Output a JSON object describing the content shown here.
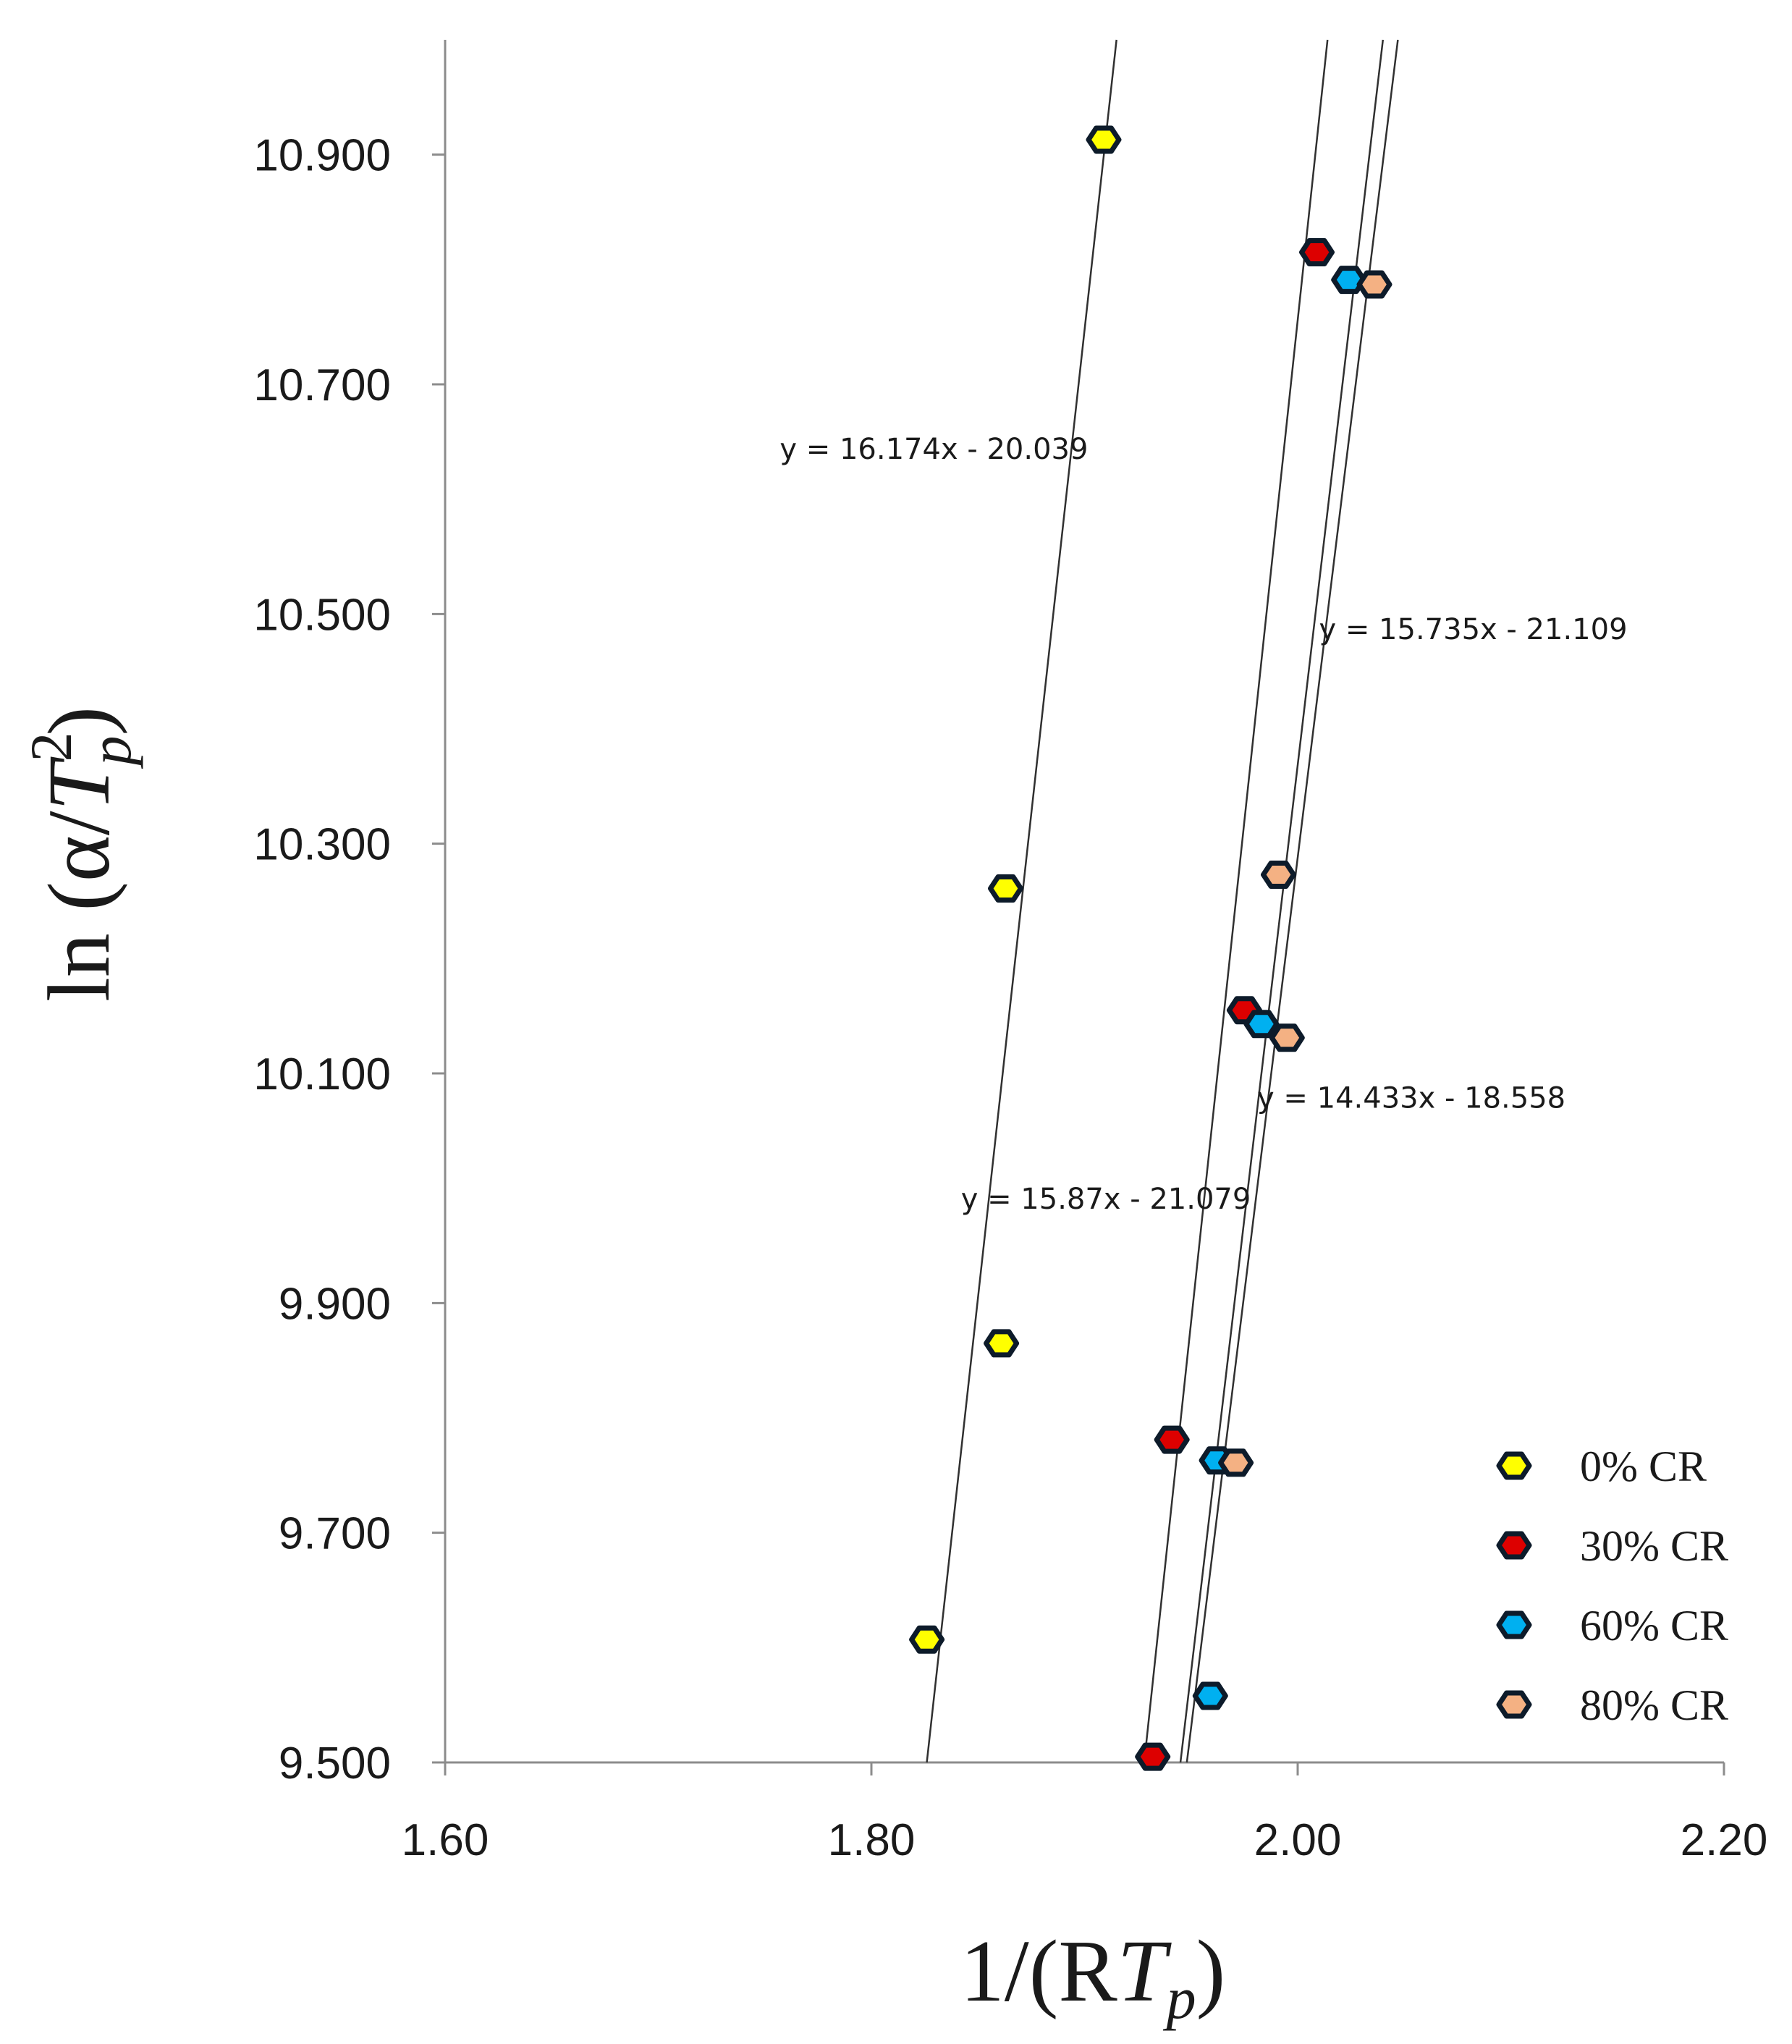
{
  "chart_data": {
    "type": "scatter",
    "title": "",
    "xlabel": "1/(RTp)",
    "xlabel_parts": {
      "prefix": "1/(R",
      "var": "T",
      "sub": "p",
      "suffix": ")"
    },
    "ylabel": "ln (α/Tp²)",
    "ylabel_parts": {
      "prefix": "ln (α/",
      "var": "T",
      "sup": "2",
      "sub": "p",
      "suffix": ")"
    },
    "xlim": [
      1.6,
      2.2
    ],
    "ylim": [
      9.5,
      11.0
    ],
    "x_ticks": [
      1.6,
      1.8,
      2.0,
      2.2
    ],
    "x_tick_labels": [
      "1.60",
      "1.80",
      "2.00",
      "2.20"
    ],
    "y_ticks": [
      9.5,
      9.7,
      9.9,
      10.1,
      10.3,
      10.5,
      10.7,
      10.9
    ],
    "y_tick_labels": [
      "9.500",
      "9.700",
      "9.900",
      "10.100",
      "10.300",
      "10.500",
      "10.700",
      "10.900"
    ],
    "grid": false,
    "legend_position": "bottom-right",
    "series": [
      {
        "name": "0% CR",
        "color": "#ffff00",
        "x": [
          1.826,
          1.861,
          1.863,
          1.909
        ],
        "y": [
          9.607,
          9.865,
          10.261,
          10.913
        ],
        "trendline": {
          "x": [
            1.826,
            1.915
          ],
          "y": [
            9.5,
            11.0
          ]
        }
      },
      {
        "name": "30% CR",
        "color": "#dd0000",
        "x": [
          1.932,
          1.941,
          1.975,
          2.009
        ],
        "y": [
          9.505,
          9.781,
          10.155,
          10.815
        ],
        "trendline": {
          "x": [
            1.928,
            2.014
          ],
          "y": [
            9.5,
            11.0
          ]
        }
      },
      {
        "name": "60% CR",
        "color": "#00b0f0",
        "x": [
          1.959,
          1.962,
          1.983,
          2.024
        ],
        "y": [
          9.558,
          9.763,
          10.143,
          10.791
        ],
        "trendline": {
          "x": [
            1.945,
            2.04
          ],
          "y": [
            9.5,
            11.0
          ]
        }
      },
      {
        "name": "80% CR",
        "color": "#f4b183",
        "x": [
          1.971,
          1.991,
          1.995,
          2.036
        ],
        "y": [
          9.761,
          10.273,
          10.131,
          10.787
        ],
        "trendline": {
          "x": [
            1.948,
            2.047
          ],
          "y": [
            9.5,
            11.0
          ]
        }
      }
    ],
    "annotations": [
      {
        "text": "y = 16.174x - 20.039",
        "x": 1.757,
        "y": 10.635
      },
      {
        "text": "y = 15.735x - 21.109",
        "x": 2.01,
        "y": 10.478
      },
      {
        "text": "y = 14.433x - 18.558",
        "x": 1.981,
        "y": 10.07
      },
      {
        "text": "y = 15.87x - 21.079",
        "x": 1.842,
        "y": 9.982
      }
    ]
  }
}
